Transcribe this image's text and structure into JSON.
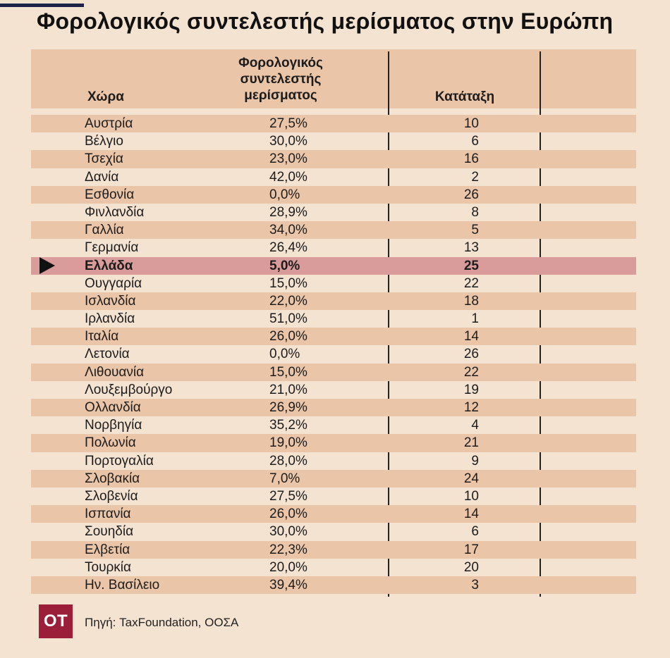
{
  "title": "Φορολογικός συντελεστής μερίσματος στην Ευρώπη",
  "headers": {
    "country": "Χώρα",
    "rate_lines": [
      "Φορολογικός",
      "συντελεστής",
      "μερίσματος"
    ],
    "rank": "Κατάταξη"
  },
  "source": "Πηγή: TaxFoundation, ΟΟΣΑ",
  "logo_text": "ΟΤ",
  "colors": {
    "background": "#f5e3d2",
    "band": "#ebc5a7",
    "highlight": "#d99c9b",
    "logo": "#9c1f3a"
  },
  "highlighted_country": "Ελλάδα",
  "chart_data": {
    "type": "table",
    "title": "Φορολογικός συντελεστής μερίσματος στην Ευρώπη",
    "columns": [
      "Χώρα",
      "Φορολογικός συντελεστής μερίσματος",
      "Κατάταξη"
    ],
    "rows": [
      {
        "country": "Αυστρία",
        "rate": "27,5%",
        "rank": "10"
      },
      {
        "country": "Βέλγιο",
        "rate": "30,0%",
        "rank": "6"
      },
      {
        "country": "Τσεχία",
        "rate": "23,0%",
        "rank": "16"
      },
      {
        "country": "Δανία",
        "rate": "42,0%",
        "rank": "2"
      },
      {
        "country": "Εσθονία",
        "rate": "0,0%",
        "rank": "26"
      },
      {
        "country": "Φινλανδία",
        "rate": "28,9%",
        "rank": "8"
      },
      {
        "country": "Γαλλία",
        "rate": "34,0%",
        "rank": "5"
      },
      {
        "country": "Γερμανία",
        "rate": "26,4%",
        "rank": "13"
      },
      {
        "country": "Ελλάδα",
        "rate": "5,0%",
        "rank": "25"
      },
      {
        "country": "Ουγγαρία",
        "rate": "15,0%",
        "rank": "22"
      },
      {
        "country": "Ισλανδία",
        "rate": "22,0%",
        "rank": "18"
      },
      {
        "country": "Ιρλανδία",
        "rate": "51,0%",
        "rank": "1"
      },
      {
        "country": "Ιταλία",
        "rate": "26,0%",
        "rank": "14"
      },
      {
        "country": "Λετονία",
        "rate": "0,0%",
        "rank": "26"
      },
      {
        "country": "Λιθουανία",
        "rate": "15,0%",
        "rank": "22"
      },
      {
        "country": "Λουξεμβούργο",
        "rate": "21,0%",
        "rank": "19"
      },
      {
        "country": "Ολλανδία",
        "rate": "26,9%",
        "rank": "12"
      },
      {
        "country": "Νορβηγία",
        "rate": "35,2%",
        "rank": "4"
      },
      {
        "country": "Πολωνία",
        "rate": "19,0%",
        "rank": "21"
      },
      {
        "country": "Πορτογαλία",
        "rate": "28,0%",
        "rank": "9"
      },
      {
        "country": "Σλοβακία",
        "rate": "7,0%",
        "rank": "24"
      },
      {
        "country": "Σλοβενία",
        "rate": "27,5%",
        "rank": "10"
      },
      {
        "country": "Ισπανία",
        "rate": "26,0%",
        "rank": "14"
      },
      {
        "country": "Σουηδία",
        "rate": "30,0%",
        "rank": "6"
      },
      {
        "country": "Ελβετία",
        "rate": "22,3%",
        "rank": "17"
      },
      {
        "country": "Τουρκία",
        "rate": "20,0%",
        "rank": "20"
      },
      {
        "country": "Ην. Βασίλειο",
        "rate": "39,4%",
        "rank": "3"
      }
    ]
  }
}
